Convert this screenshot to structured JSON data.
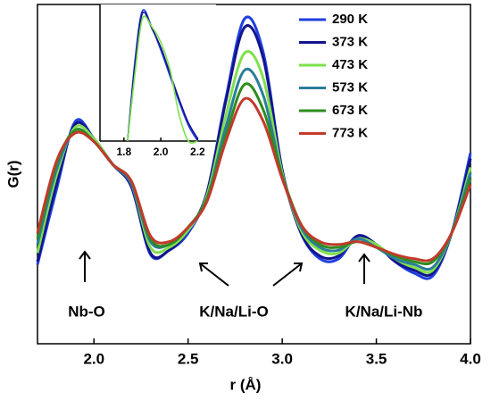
{
  "chart_data": [
    {
      "type": "line",
      "x_label": "r (Å)",
      "y_label": "G(r)",
      "x": [
        1.7,
        1.8,
        1.9,
        2.0,
        2.1,
        2.2,
        2.3,
        2.4,
        2.5,
        2.6,
        2.7,
        2.8,
        2.9,
        3.0,
        3.1,
        3.2,
        3.3,
        3.4,
        3.5,
        3.6,
        3.7,
        3.8,
        3.9,
        4.0
      ],
      "series": [
        {
          "name": "290 K",
          "color": "#1f3fe0",
          "values": [
            9,
            35,
            59,
            53,
            44,
            36,
            12.5,
            14,
            20,
            34,
            67,
            95,
            83,
            42,
            20,
            11,
            11,
            19,
            16,
            10,
            6,
            5,
            20,
            48
          ]
        },
        {
          "name": "373 K",
          "color": "#14148c",
          "values": [
            10,
            37,
            58,
            53,
            44,
            36,
            13,
            14,
            21,
            34,
            66,
            92,
            81,
            42,
            20,
            12,
            12,
            19,
            16,
            10,
            7,
            6,
            20,
            46
          ]
        },
        {
          "name": "473 K",
          "color": "#7fe04c",
          "values": [
            13,
            40,
            57,
            53,
            44,
            37,
            15,
            15,
            21,
            33,
            61,
            83,
            74,
            41,
            21,
            14,
            13,
            18,
            16,
            11,
            8,
            7,
            20,
            43
          ]
        },
        {
          "name": "573 K",
          "color": "#2b7d9c",
          "values": [
            16,
            42,
            56,
            52,
            44,
            37,
            17,
            16,
            22,
            32,
            57,
            77,
            68,
            40,
            22,
            15,
            14,
            18,
            15,
            11,
            9,
            8,
            20,
            41
          ]
        },
        {
          "name": "673 K",
          "color": "#2e8c1e",
          "values": [
            18,
            44,
            56,
            52,
            44,
            38,
            18,
            16,
            22,
            32,
            54,
            72,
            63,
            40,
            23,
            16,
            15,
            17,
            15,
            12,
            10,
            10,
            20,
            39
          ]
        },
        {
          "name": "773 K",
          "color": "#c23a2c",
          "values": [
            20,
            45,
            55,
            52,
            44,
            38,
            19,
            17,
            22,
            31,
            52,
            67,
            59,
            39,
            23,
            17,
            16,
            17,
            15,
            12.5,
            11,
            11,
            20,
            37
          ]
        }
      ],
      "xlim": [
        1.7,
        4.0
      ],
      "ylim": [
        -18.75,
        100
      ],
      "xticks": [
        {
          "value": 2.0,
          "label": "2.0"
        },
        2.5,
        {
          "value": 3.0,
          "label": "3.0"
        },
        3.5,
        {
          "value": 4.0,
          "label": "4.0"
        }
      ],
      "annotations": [
        "Nb-O",
        "K/Na/Li-O",
        "K/Na/Li-Nb"
      ],
      "legend": "upper right"
    },
    {
      "type": "line",
      "x": [
        1.82,
        1.86,
        1.9,
        1.95,
        2.0,
        2.05,
        2.1,
        2.15,
        2.2
      ],
      "series": [
        {
          "color": "#1f3fe0",
          "values": [
            0,
            62,
            100,
            88,
            70,
            50,
            30,
            12,
            0
          ]
        },
        {
          "color": "#14148c",
          "values": [
            0,
            58,
            98,
            87,
            72,
            52,
            32,
            14,
            2
          ]
        },
        {
          "color": "#7fe04c",
          "values": [
            0,
            52,
            94,
            88,
            76,
            55,
            20,
            0,
            0
          ]
        }
      ],
      "xlim": [
        1.67,
        2.3
      ],
      "ylim": [
        0,
        105
      ],
      "xticks": [
        1.8,
        {
          "value": 2.0,
          "label": "2.0"
        },
        2.2
      ]
    }
  ]
}
